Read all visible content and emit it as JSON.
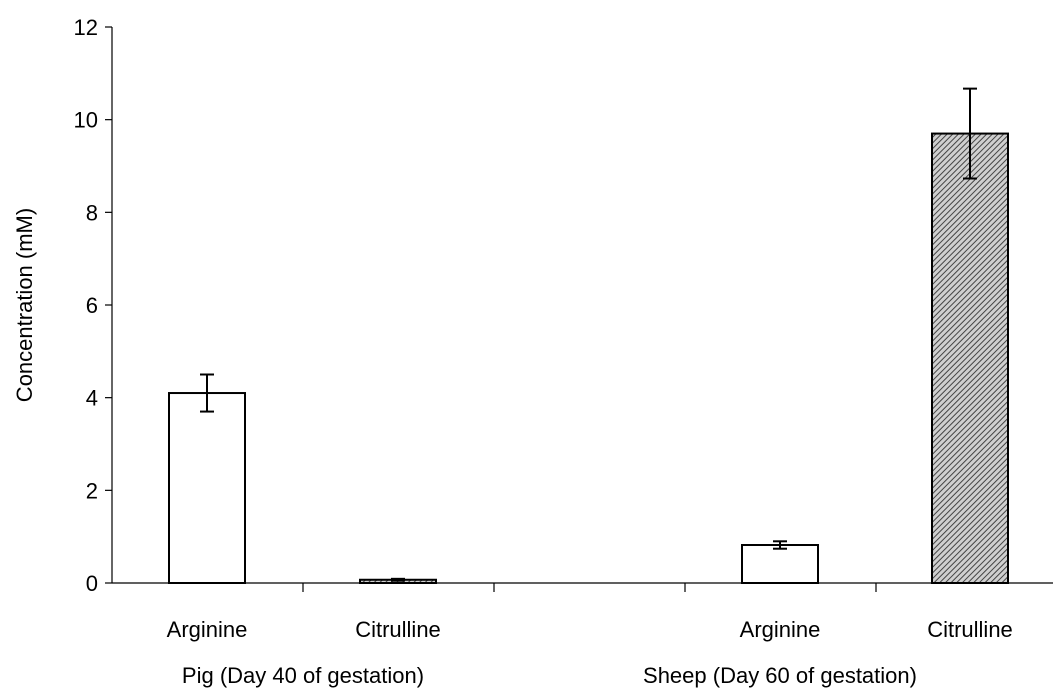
{
  "chart_data": {
    "type": "bar",
    "title": "",
    "ylabel": "Concentration (mM)",
    "xlabel": "",
    "ylim": [
      0,
      12
    ],
    "yticks": [
      0,
      2,
      4,
      6,
      8,
      10,
      12
    ],
    "groups": [
      {
        "label": "Pig (Day 40 of gestation)",
        "bars": [
          {
            "category": "Arginine",
            "value": 4.1,
            "error": 0.4,
            "fill": "white"
          },
          {
            "category": "Citrulline",
            "value": 0.07,
            "error": 0.02,
            "fill": "hatched"
          }
        ]
      },
      {
        "label": "Sheep (Day 60 of gestation)",
        "bars": [
          {
            "category": "Arginine",
            "value": 0.82,
            "error": 0.08,
            "fill": "white"
          },
          {
            "category": "Citrulline",
            "value": 9.7,
            "error": 0.97,
            "fill": "hatched"
          }
        ]
      }
    ],
    "colors": {
      "bar_edge": "#000000",
      "white_fill": "#ffffff",
      "hatch": "#555555"
    }
  }
}
